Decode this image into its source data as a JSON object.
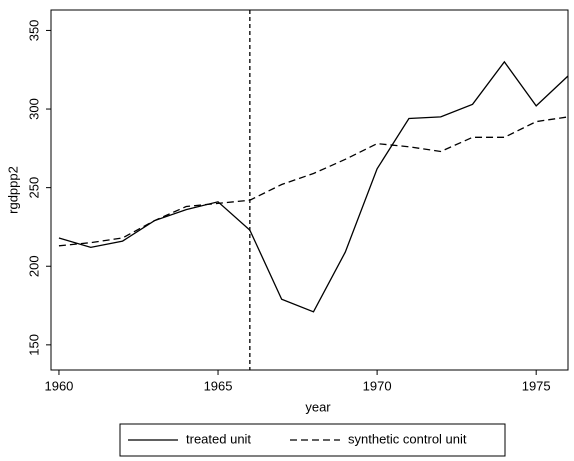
{
  "chart_data": {
    "type": "line",
    "x_label": "year",
    "y_label": "rgdppp2",
    "x": [
      1960,
      1961,
      1962,
      1963,
      1964,
      1965,
      1966,
      1967,
      1968,
      1969,
      1970,
      1971,
      1972,
      1973,
      1974,
      1975,
      1976
    ],
    "series": [
      {
        "name": "treated unit",
        "color": "#000000",
        "dash": "solid",
        "values": [
          218,
          212,
          216,
          229,
          236,
          241,
          223,
          179,
          171,
          209,
          262,
          294,
          295,
          303,
          330,
          302,
          321
        ]
      },
      {
        "name": "synthetic control unit",
        "color": "#000000",
        "dash": "dashed",
        "values": [
          213,
          215,
          218,
          229,
          238,
          240,
          242,
          252,
          259,
          268,
          278,
          276,
          273,
          282,
          282,
          292,
          295
        ]
      }
    ],
    "vline": 1966,
    "xlim": [
      1959.75,
      1976
    ],
    "xticks": [
      1960,
      1965,
      1970,
      1975
    ],
    "ylim": [
      134,
      363
    ],
    "yticks": [
      150,
      200,
      250,
      300,
      350
    ],
    "legend": "bottom"
  }
}
